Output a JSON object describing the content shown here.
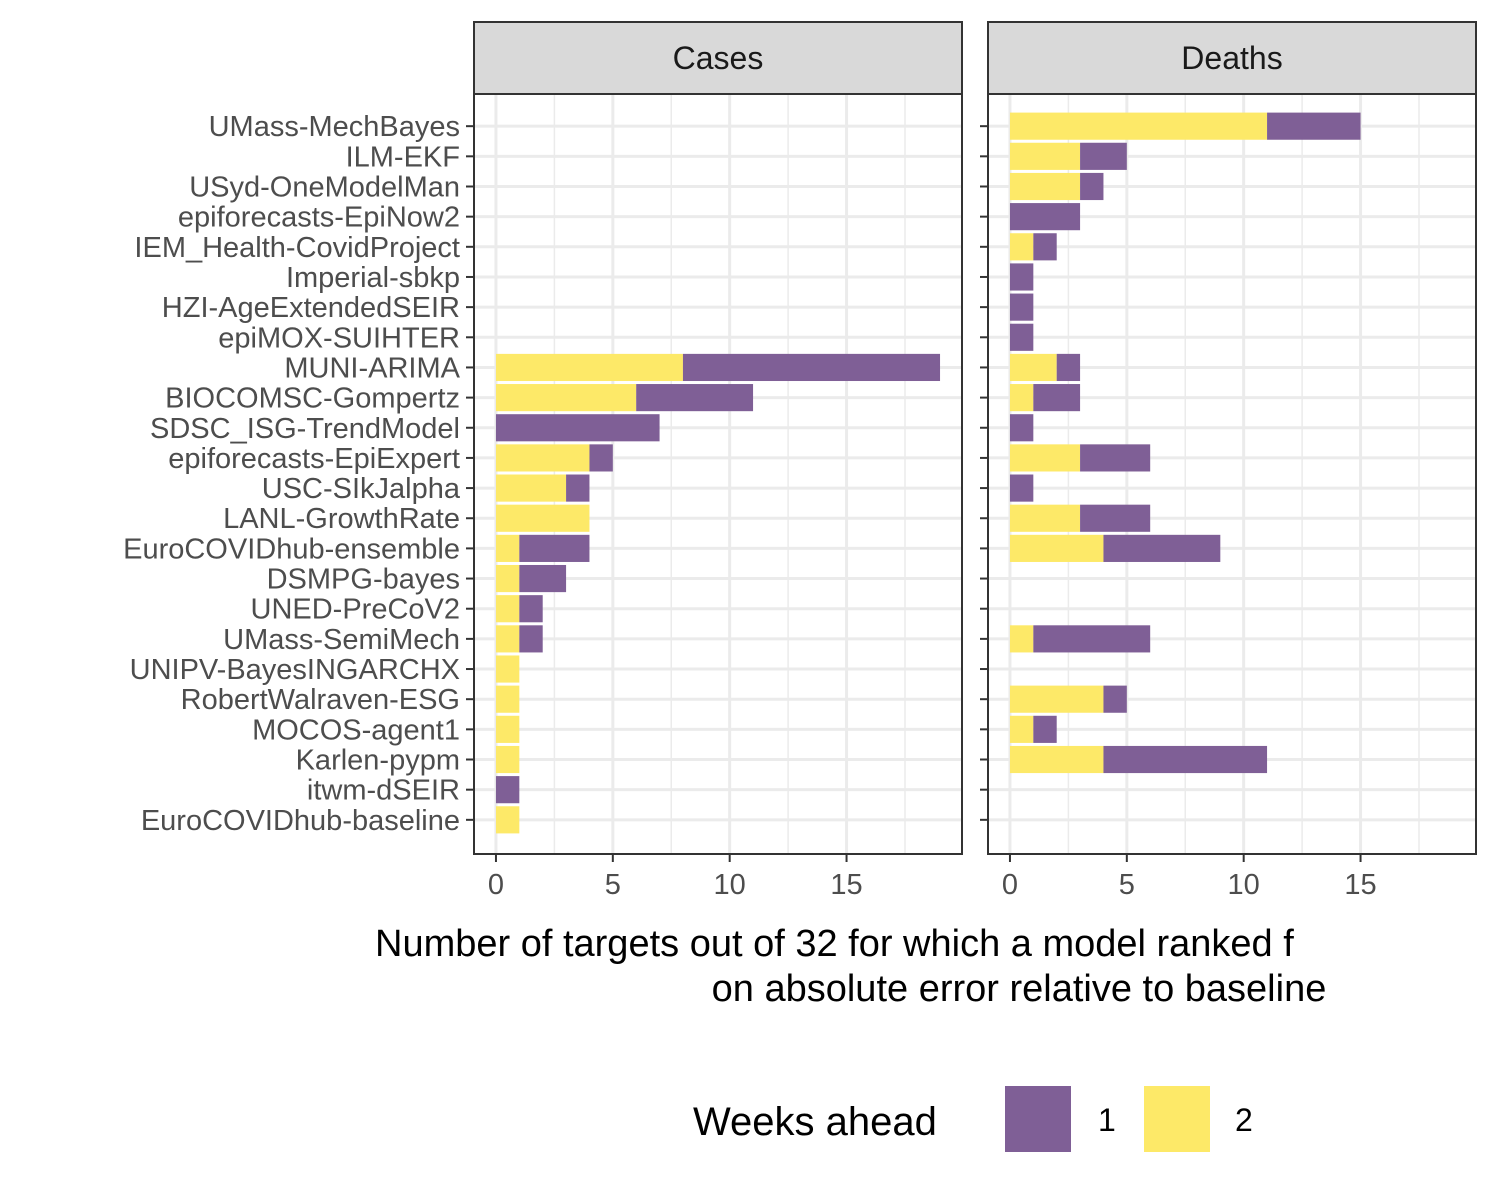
{
  "chart_data": {
    "type": "bar",
    "orientation": "horizontal",
    "stacked": true,
    "xlabel_lines": [
      "Number of targets out of 32 for which a model ranked f",
      "on absolute error relative to baseline"
    ],
    "xlim": [
      0,
      19
    ],
    "xticks": [
      0,
      5,
      10,
      15
    ],
    "grid": true,
    "legend": {
      "title": "Weeks ahead",
      "position": "bottom",
      "items": [
        {
          "label": "1",
          "color": "#7f5f96"
        },
        {
          "label": "2",
          "color": "#fde968"
        }
      ]
    },
    "categories": [
      "UMass-MechBayes",
      "ILM-EKF",
      "USyd-OneModelMan",
      "epiforecasts-EpiNow2",
      "IEM_Health-CovidProject",
      "Imperial-sbkp",
      "HZI-AgeExtendedSEIR",
      "epiMOX-SUIHTER",
      "MUNI-ARIMA",
      "BIOCOMSC-Gompertz",
      "SDSC_ISG-TrendModel",
      "epiforecasts-EpiExpert",
      "USC-SIkJalpha",
      "LANL-GrowthRate",
      "EuroCOVIDhub-ensemble",
      "DSMPG-bayes",
      "UNED-PreCoV2",
      "UMass-SemiMech",
      "UNIPV-BayesINGARCHX",
      "RobertWalraven-ESG",
      "MOCOS-agent1",
      "Karlen-pypm",
      "itwm-dSEIR",
      "EuroCOVIDhub-baseline"
    ],
    "panels": [
      {
        "name": "Cases",
        "series": [
          {
            "name": "2",
            "values": [
              0,
              0,
              0,
              0,
              0,
              0,
              0,
              0,
              8,
              6,
              0,
              4,
              3,
              4,
              1,
              1,
              1,
              1,
              1,
              1,
              1,
              1,
              0,
              1
            ]
          },
          {
            "name": "1",
            "values": [
              0,
              0,
              0,
              0,
              0,
              0,
              0,
              0,
              11,
              5,
              7,
              1,
              1,
              0,
              3,
              2,
              1,
              1,
              0,
              0,
              0,
              0,
              1,
              0
            ]
          }
        ]
      },
      {
        "name": "Deaths",
        "series": [
          {
            "name": "2",
            "values": [
              11,
              3,
              3,
              0,
              1,
              0,
              0,
              0,
              2,
              1,
              0,
              3,
              0,
              3,
              4,
              0,
              0,
              1,
              0,
              4,
              1,
              4,
              0,
              0
            ]
          },
          {
            "name": "1",
            "values": [
              4,
              2,
              1,
              3,
              1,
              1,
              1,
              1,
              1,
              2,
              1,
              3,
              1,
              3,
              5,
              0,
              0,
              5,
              0,
              1,
              1,
              7,
              0,
              0
            ]
          }
        ]
      }
    ]
  }
}
